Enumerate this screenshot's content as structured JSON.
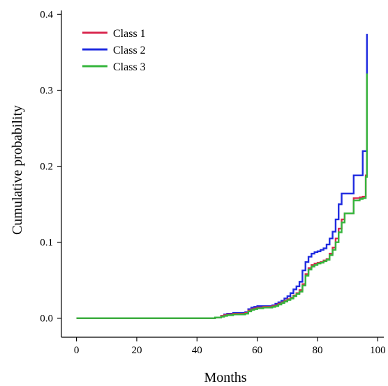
{
  "chart_data": {
    "type": "line",
    "step": true,
    "xlabel": "Months",
    "ylabel": "Cumulative probability",
    "xlim": [
      -5,
      102
    ],
    "ylim": [
      -0.025,
      0.405
    ],
    "xticks": [
      0,
      20,
      40,
      60,
      80,
      100
    ],
    "yticks": [
      0.0,
      0.1,
      0.2,
      0.3,
      0.4
    ],
    "xtick_labels": [
      "0",
      "20",
      "40",
      "60",
      "80",
      "100"
    ],
    "ytick_labels": [
      "0.0",
      "0.1",
      "0.2",
      "0.3",
      "0.4"
    ],
    "grid": false,
    "legend_position": "top-left",
    "series": [
      {
        "name": "Class 1",
        "color": "#d9284f",
        "x": [
          0,
          40,
          46,
          48,
          49,
          50,
          52,
          56,
          57,
          58,
          59,
          60,
          62,
          64,
          65,
          66,
          67,
          68,
          69,
          70,
          71,
          72,
          73,
          74,
          75,
          76,
          77,
          78,
          79,
          80,
          81,
          82,
          83,
          84,
          85,
          86,
          87,
          88,
          89,
          91,
          92,
          94,
          95,
          96,
          96.4
        ],
        "y": [
          0,
          0,
          0.001,
          0.003,
          0.004,
          0.005,
          0.006,
          0.007,
          0.01,
          0.012,
          0.013,
          0.014,
          0.015,
          0.015,
          0.016,
          0.017,
          0.019,
          0.021,
          0.023,
          0.025,
          0.027,
          0.03,
          0.033,
          0.037,
          0.045,
          0.058,
          0.066,
          0.07,
          0.072,
          0.073,
          0.074,
          0.076,
          0.078,
          0.085,
          0.093,
          0.105,
          0.118,
          0.13,
          0.138,
          0.138,
          0.158,
          0.159,
          0.16,
          0.188,
          0.322
        ]
      },
      {
        "name": "Class 2",
        "color": "#1f2be0",
        "x": [
          0,
          40,
          46,
          48,
          49,
          50,
          52,
          56,
          57,
          58,
          59,
          60,
          62,
          64,
          65,
          66,
          67,
          68,
          69,
          70,
          71,
          72,
          73,
          74,
          75,
          76,
          77,
          78,
          79,
          80,
          81,
          82,
          83,
          84,
          85,
          86,
          87,
          88,
          89,
          91,
          92,
          94,
          95,
          96,
          96.4
        ],
        "y": [
          0,
          0,
          0.001,
          0.003,
          0.005,
          0.006,
          0.007,
          0.008,
          0.012,
          0.014,
          0.015,
          0.016,
          0.016,
          0.016,
          0.017,
          0.019,
          0.021,
          0.023,
          0.026,
          0.029,
          0.033,
          0.038,
          0.042,
          0.048,
          0.063,
          0.074,
          0.081,
          0.085,
          0.087,
          0.088,
          0.09,
          0.092,
          0.097,
          0.105,
          0.114,
          0.13,
          0.15,
          0.164,
          0.164,
          0.164,
          0.188,
          0.188,
          0.22,
          0.22,
          0.374
        ]
      },
      {
        "name": "Class 3",
        "color": "#35b53c",
        "x": [
          0,
          40,
          46,
          48,
          49,
          50,
          52,
          56,
          57,
          58,
          59,
          60,
          62,
          64,
          65,
          66,
          67,
          68,
          69,
          70,
          71,
          72,
          73,
          74,
          75,
          76,
          77,
          78,
          79,
          80,
          81,
          82,
          83,
          84,
          85,
          86,
          87,
          88,
          89,
          91,
          92,
          94,
          95,
          96,
          96.4
        ],
        "y": [
          0,
          0,
          0.001,
          0.002,
          0.003,
          0.004,
          0.005,
          0.006,
          0.009,
          0.011,
          0.012,
          0.013,
          0.014,
          0.014,
          0.015,
          0.016,
          0.018,
          0.02,
          0.022,
          0.024,
          0.026,
          0.029,
          0.032,
          0.035,
          0.043,
          0.056,
          0.064,
          0.068,
          0.07,
          0.072,
          0.073,
          0.075,
          0.077,
          0.083,
          0.09,
          0.1,
          0.113,
          0.126,
          0.138,
          0.138,
          0.155,
          0.157,
          0.158,
          0.186,
          0.322
        ]
      }
    ]
  }
}
